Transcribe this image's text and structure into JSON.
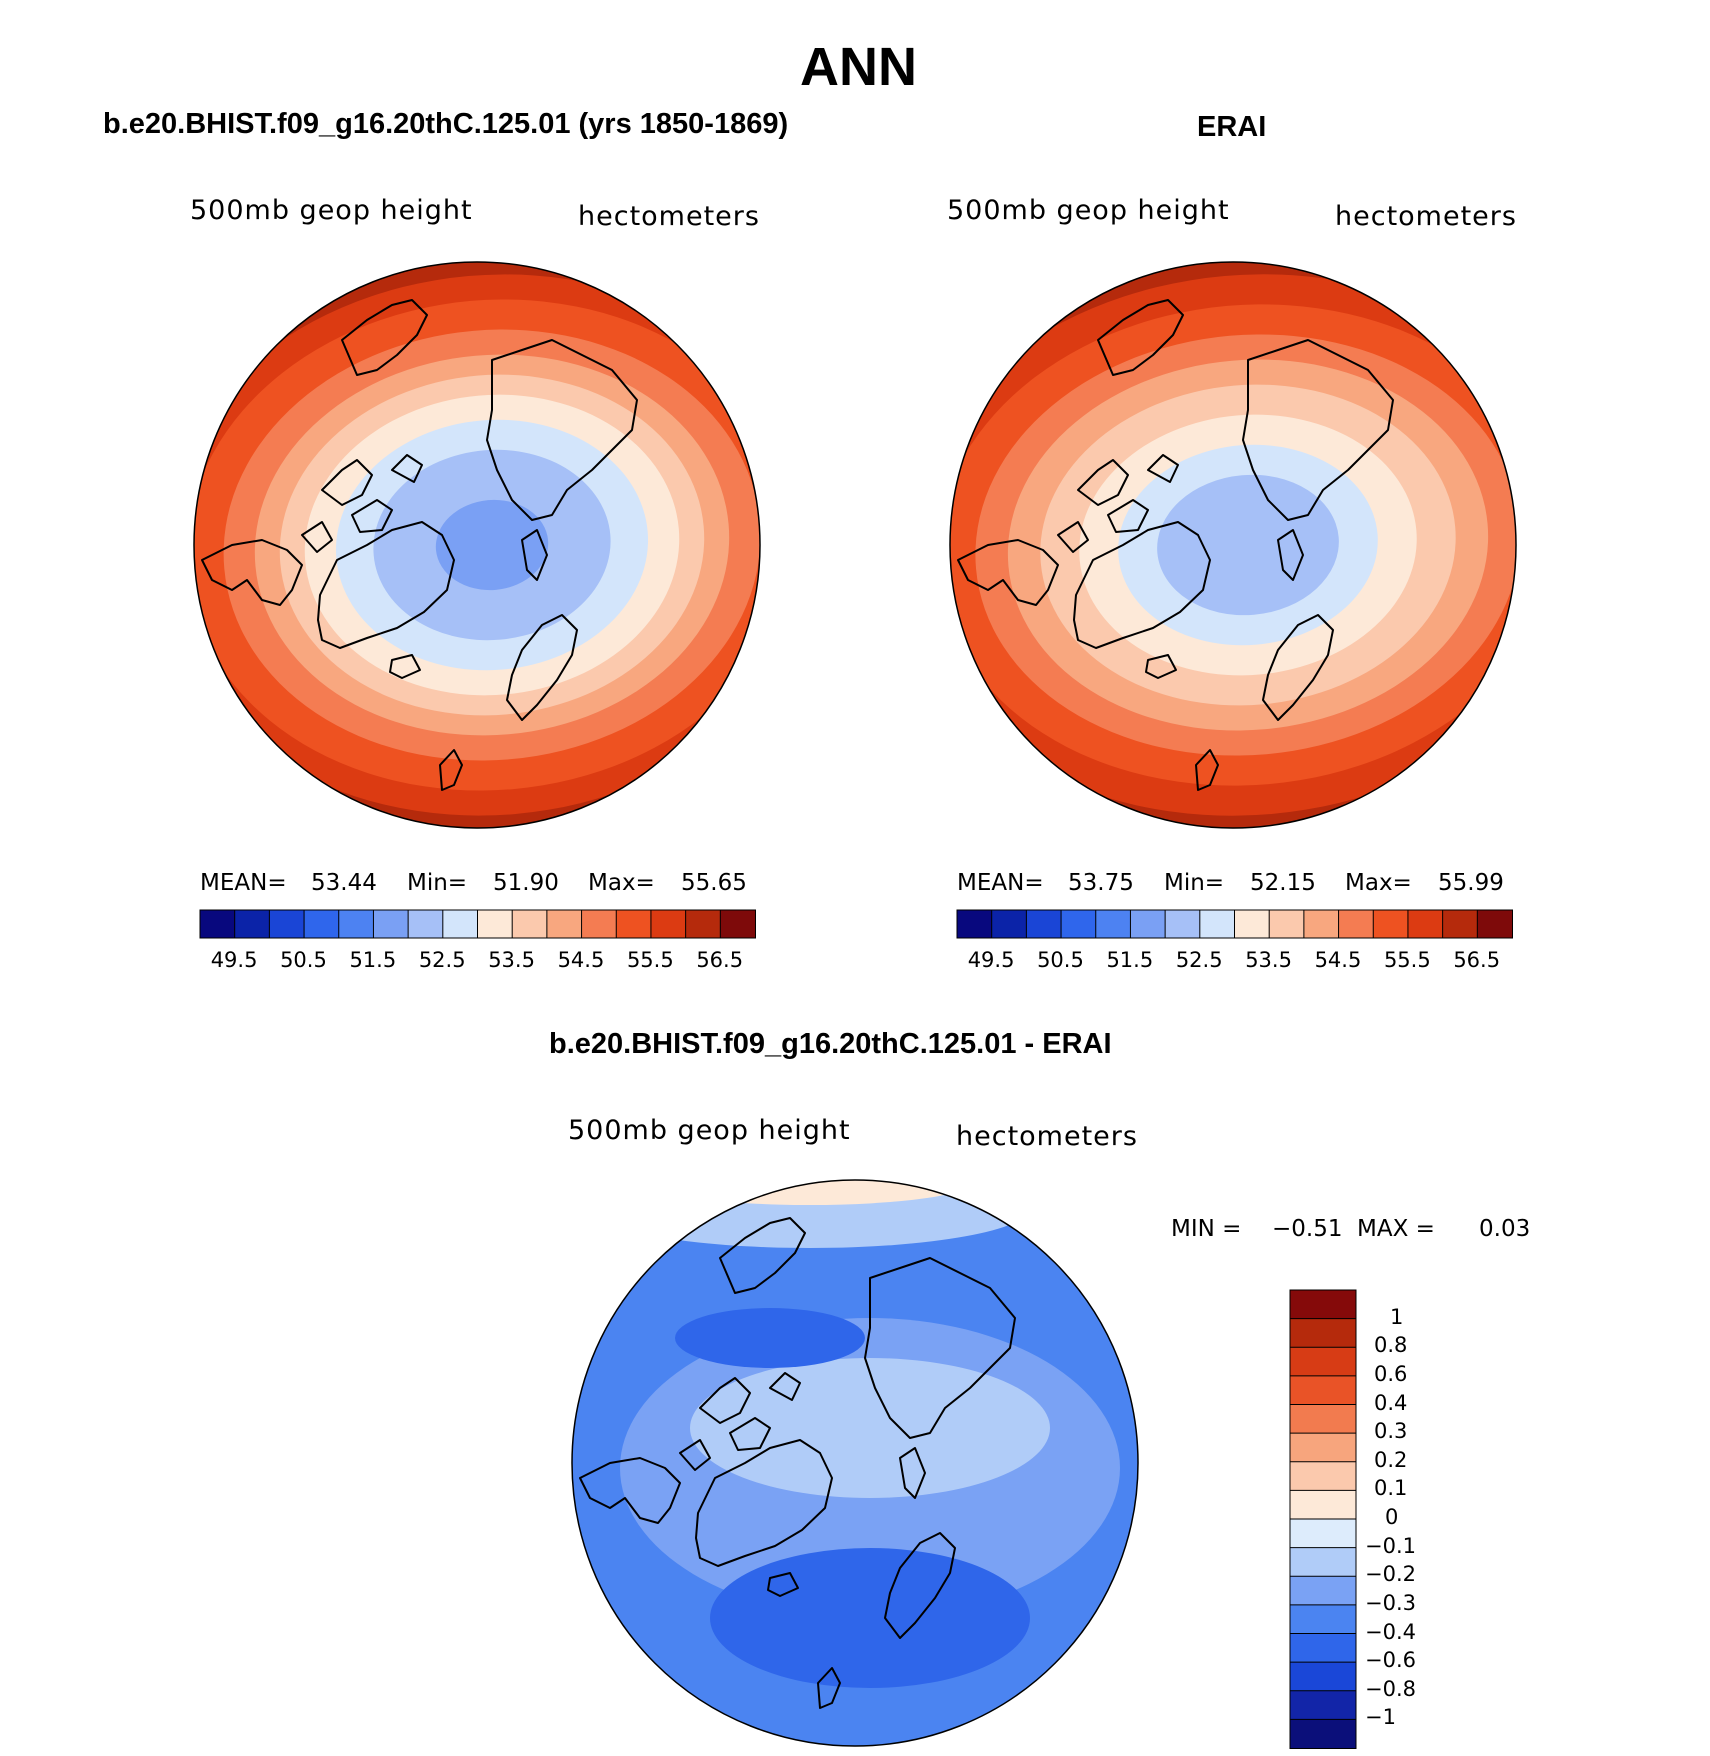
{
  "title": "ANN",
  "palette_hgt": [
    "#08087e",
    "#0b23a8",
    "#1a45d6",
    "#2f66ec",
    "#4d82f2",
    "#7aa0f4",
    "#a6c0f7",
    "#d3e5fb",
    "#fde9d8",
    "#fbc9ad",
    "#f8a77f",
    "#f47c52",
    "#ee5221",
    "#dc3b12",
    "#b52a0c",
    "#7e0a0a"
  ],
  "palette_diff": [
    "#0b0f7a",
    "#1225a8",
    "#1a47d8",
    "#2f66ea",
    "#4b84f1",
    "#7aa2f4",
    "#b0ccf8",
    "#ddecfc",
    "#fde9d8",
    "#fbc9ad",
    "#f7a57d",
    "#f27b4f",
    "#e95327",
    "#d73c15",
    "#b52a0c",
    "#850a0a"
  ],
  "panels": [
    {
      "title": "b.e20.BHIST.f09_g16.20thC.125.01 (yrs 1850-1869)",
      "variable": "500mb geop height",
      "units": "hectometers",
      "mean_label": "MEAN=",
      "mean": "53.44",
      "min_label": "Min=",
      "min": "51.90",
      "max_label": "Max=",
      "max": "55.65",
      "colorbar_ticks": [
        "49.5",
        "50.5",
        "51.5",
        "52.5",
        "53.5",
        "54.5",
        "55.5",
        "56.5"
      ]
    },
    {
      "title": "ERAI",
      "variable": "500mb geop height",
      "units": "hectometers",
      "mean_label": "MEAN=",
      "mean": "53.75",
      "min_label": "Min=",
      "min": "52.15",
      "max_label": "Max=",
      "max": "55.99",
      "colorbar_ticks": [
        "49.5",
        "50.5",
        "51.5",
        "52.5",
        "53.5",
        "54.5",
        "55.5",
        "56.5"
      ]
    }
  ],
  "difference": {
    "title": "b.e20.BHIST.f09_g16.20thC.125.01 - ERAI",
    "variable": "500mb geop height",
    "units": "hectometers",
    "min_label": "MIN =",
    "min": "−0.51",
    "max_label": "MAX =",
    "max": "0.03",
    "colorbar_ticks": [
      "1",
      "0.8",
      "0.6",
      "0.4",
      "0.3",
      "0.2",
      "0.1",
      "0",
      "−0.1",
      "−0.2",
      "−0.3",
      "−0.4",
      "−0.6",
      "−0.8",
      "−1"
    ]
  }
}
